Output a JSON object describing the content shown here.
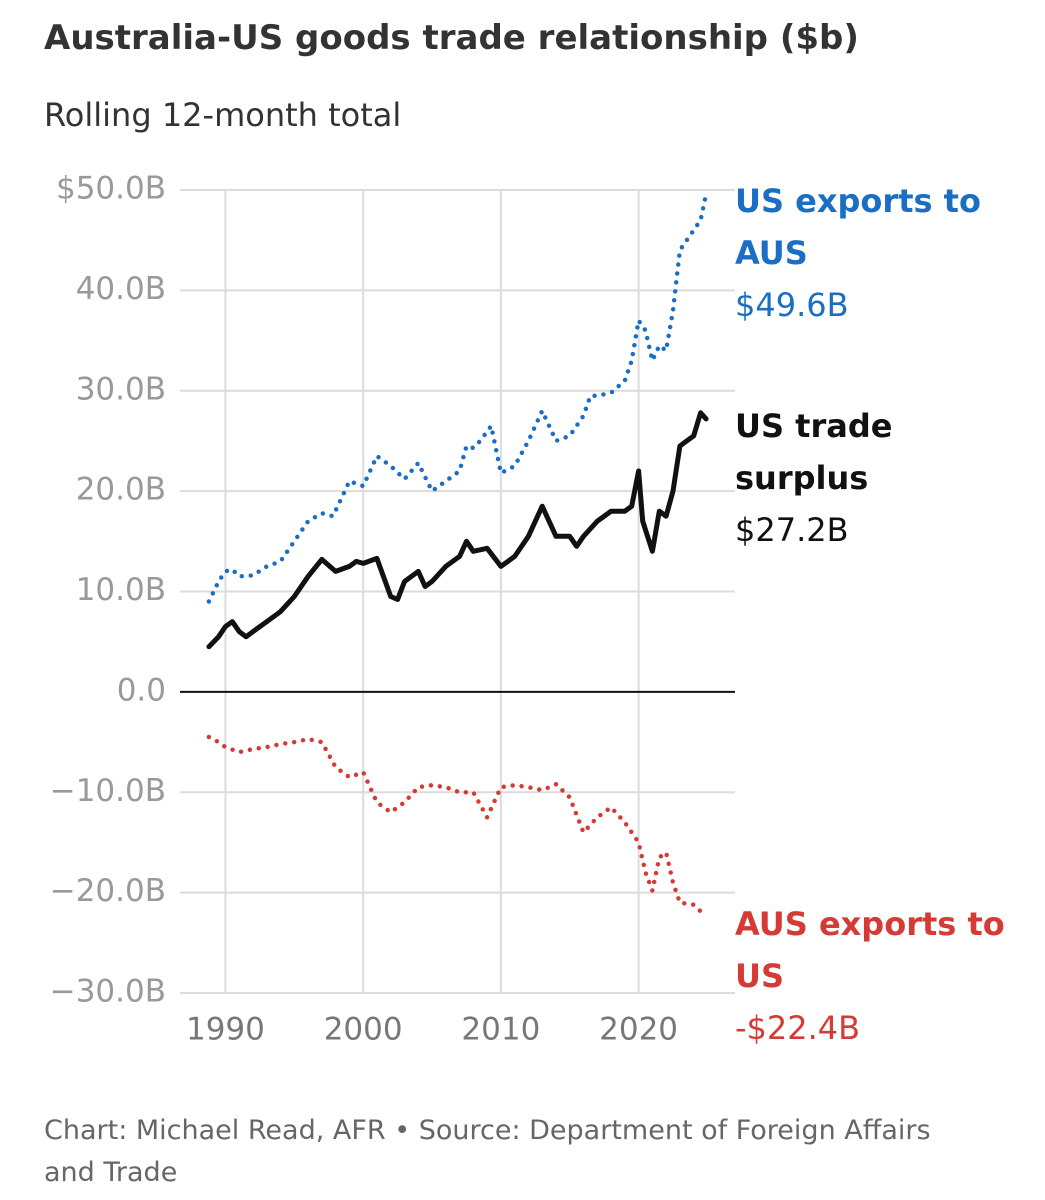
{
  "chart_data": {
    "type": "line",
    "title": "Australia-US goods trade relationship ($b)",
    "subtitle": "Rolling 12-month total",
    "source": "Chart: Michael Read, AFR • Source: Department of Foreign Affairs and Trade",
    "xlim": [
      1986.7,
      2027
    ],
    "xticks": [
      1990,
      2000,
      2010,
      2020
    ],
    "ylim": [
      -30,
      50
    ],
    "yticks": [
      {
        "value": 50,
        "label": "$50.0B"
      },
      {
        "value": 40,
        "label": "40.0B"
      },
      {
        "value": 30,
        "label": "30.0B"
      },
      {
        "value": 20,
        "label": "20.0B"
      },
      {
        "value": 10,
        "label": "10.0B"
      },
      {
        "value": 0,
        "label": "0.0"
      },
      {
        "value": -10,
        "label": "−10.0B"
      },
      {
        "value": -20,
        "label": "−20.0B"
      },
      {
        "value": -30,
        "label": "−30.0B"
      }
    ],
    "grid": true,
    "series": [
      {
        "name": "US exports to AUS",
        "color": "#1a6fc4",
        "style": "dotted",
        "value_label": "$49.6B",
        "x": [
          1988.8,
          1989.5,
          1990,
          1990.5,
          1991,
          1992,
          1993,
          1994,
          1995,
          1996,
          1997,
          1997.8,
          1998.5,
          1999,
          2000,
          2001,
          2002,
          2003,
          2004,
          2005,
          2006,
          2007,
          2007.5,
          2008,
          2008.5,
          2009.3,
          2010,
          2011,
          2012,
          2013,
          2014,
          2015,
          2016,
          2016.5,
          2017,
          2018,
          2019,
          2019.5,
          2020,
          2020.5,
          2021,
          2021.5,
          2022,
          2022.5,
          2023,
          2023.5,
          2024,
          2024.5,
          2024.9
        ],
        "values": [
          9,
          11,
          12,
          12.2,
          11.5,
          11.6,
          12.5,
          13,
          15,
          17,
          17.8,
          17.5,
          19.5,
          21,
          20.5,
          23.5,
          22.5,
          21.2,
          22.8,
          20,
          21,
          22,
          24.5,
          24.3,
          25,
          26.5,
          21.8,
          22.5,
          25,
          28,
          25,
          25.5,
          27.5,
          29.5,
          29.5,
          29.8,
          31,
          33,
          37,
          36,
          33,
          34.5,
          34,
          38,
          44,
          45,
          46,
          47,
          49.6
        ]
      },
      {
        "name": "US trade surplus",
        "color": "#111111",
        "style": "solid",
        "value_label": "$27.2B",
        "x": [
          1988.8,
          1989.5,
          1990,
          1990.5,
          1991,
          1991.5,
          1992,
          1993,
          1994,
          1995,
          1996,
          1997,
          1998,
          1999,
          1999.5,
          2000,
          2001,
          2002,
          2002.5,
          2003,
          2004,
          2004.5,
          2005,
          2006,
          2007,
          2007.5,
          2008,
          2009,
          2010,
          2011,
          2012,
          2013,
          2014,
          2015,
          2015.5,
          2016,
          2017,
          2018,
          2019,
          2019.5,
          2020,
          2020.3,
          2021,
          2021.5,
          2022,
          2022.5,
          2023,
          2023.5,
          2024,
          2024.5,
          2024.9
        ],
        "values": [
          4.5,
          5.5,
          6.5,
          7,
          6,
          5.5,
          6,
          7,
          8,
          9.5,
          11.5,
          13.2,
          12,
          12.5,
          13,
          12.8,
          13.3,
          9.5,
          9.2,
          11,
          12,
          10.5,
          11,
          12.5,
          13.5,
          15,
          14,
          14.3,
          12.5,
          13.5,
          15.5,
          18.5,
          15.5,
          15.5,
          14.5,
          15.5,
          17,
          18,
          18,
          18.5,
          22,
          17,
          14,
          18,
          17.5,
          20,
          24.5,
          25,
          25.5,
          27.8,
          27.2
        ]
      },
      {
        "name": "AUS exports to US",
        "color": "#d63a35",
        "style": "dotted",
        "value_label": "-$22.4B",
        "x": [
          1988.8,
          1989.5,
          1990,
          1991,
          1992,
          1993,
          1994,
          1995,
          1996,
          1997,
          1998,
          1999,
          2000,
          2001,
          2002,
          2003,
          2004,
          2005,
          2006,
          2007,
          2008,
          2009,
          2010,
          2011,
          2012,
          2013,
          2014,
          2015,
          2016,
          2017,
          2018,
          2019,
          2020,
          2020.5,
          2021,
          2021.5,
          2022,
          2022.5,
          2023,
          2024,
          2024.9
        ],
        "values": [
          -4.5,
          -5,
          -5.5,
          -6,
          -5.7,
          -5.5,
          -5.2,
          -5,
          -4.7,
          -5,
          -7.5,
          -8.5,
          -8,
          -11,
          -12,
          -11,
          -9.5,
          -9.3,
          -9.5,
          -10,
          -10,
          -12.5,
          -9.5,
          -9.3,
          -9.5,
          -9.8,
          -9.2,
          -10.5,
          -14,
          -12.5,
          -11.5,
          -13,
          -15,
          -18,
          -19.8,
          -16.5,
          -16,
          -19,
          -21,
          -21.2,
          -22.4
        ]
      }
    ]
  }
}
